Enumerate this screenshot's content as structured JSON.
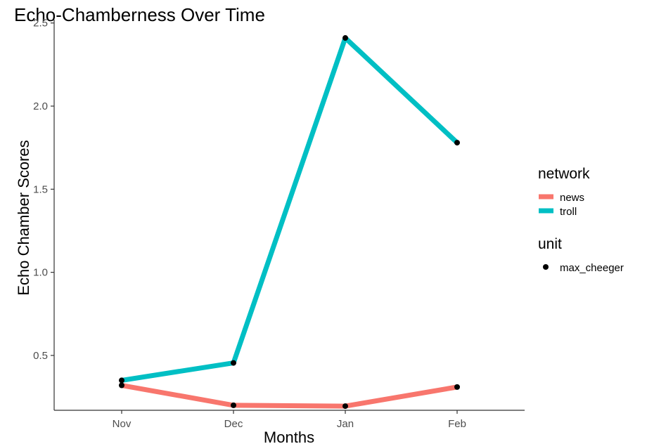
{
  "chart_data": {
    "type": "line",
    "title": "Echo-Chamberness Over Time",
    "xlabel": "Months",
    "ylabel": "Echo Chamber Scores",
    "categories": [
      "Nov",
      "Dec",
      "Jan",
      "Feb"
    ],
    "y_ticks": [
      "0.5",
      "1.0",
      "1.5",
      "2.0",
      "2.5"
    ],
    "y_tick_values": [
      0.5,
      1.0,
      1.5,
      2.0,
      2.5
    ],
    "ylim": [
      0.17,
      2.52
    ],
    "grid": false,
    "legend_position": "right",
    "series": [
      {
        "name": "news",
        "color": "#F8766D",
        "values": [
          0.32,
          0.2,
          0.195,
          0.31
        ]
      },
      {
        "name": "troll",
        "color": "#00BFC4",
        "values": [
          0.35,
          0.455,
          2.41,
          1.78
        ]
      }
    ],
    "legend": {
      "color_title": "network",
      "shape_title": "unit",
      "shape_label": "max_cheeger"
    }
  }
}
